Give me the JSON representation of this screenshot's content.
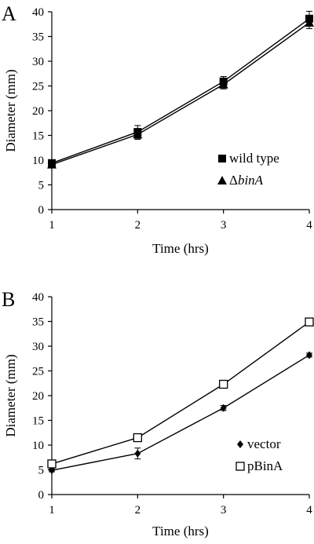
{
  "chart_data": [
    {
      "panel_label": "A",
      "type": "line",
      "xlabel": "Time (hrs)",
      "ylabel": "Diameter (mm)",
      "x": [
        1,
        2,
        3,
        4
      ],
      "xlim": [
        1,
        4
      ],
      "ylim": [
        0,
        40
      ],
      "yticks": [
        0,
        5,
        10,
        15,
        20,
        25,
        30,
        35,
        40
      ],
      "xticks": [
        1,
        2,
        3,
        4
      ],
      "grid": false,
      "legend_position": "bottom-right",
      "series": [
        {
          "name": "wild type",
          "marker": "filled-square",
          "color": "#000000",
          "values": [
            9.4,
            15.7,
            25.9,
            38.6
          ],
          "error": [
            0.5,
            1.3,
            1.0,
            1.5
          ]
        },
        {
          "name": "ΔbinA",
          "name_prefix": "Δ",
          "name_italic": "binA",
          "marker": "filled-triangle",
          "color": "#000000",
          "values": [
            9.1,
            15.2,
            25.3,
            37.8
          ],
          "error": [
            0.5,
            1.0,
            0.9,
            1.2
          ]
        }
      ]
    },
    {
      "panel_label": "B",
      "type": "line",
      "xlabel": "Time (hrs)",
      "ylabel": "Diameter (mm)",
      "x": [
        1,
        2,
        3,
        4
      ],
      "xlim": [
        1,
        4
      ],
      "ylim": [
        0,
        40
      ],
      "yticks": [
        0,
        5,
        10,
        15,
        20,
        25,
        30,
        35,
        40
      ],
      "xticks": [
        1,
        2,
        3,
        4
      ],
      "grid": false,
      "legend_position": "bottom-right",
      "series": [
        {
          "name": "vector",
          "marker": "filled-diamond",
          "color": "#000000",
          "values": [
            4.9,
            8.3,
            17.5,
            28.2
          ],
          "error": [
            0.3,
            1.1,
            0.5,
            0.4
          ]
        },
        {
          "name": "pBinA",
          "marker": "open-square",
          "color": "#000000",
          "values": [
            6.2,
            11.5,
            22.3,
            34.9
          ],
          "error": [
            0.4,
            0.5,
            0.6,
            0.4
          ]
        }
      ]
    }
  ]
}
